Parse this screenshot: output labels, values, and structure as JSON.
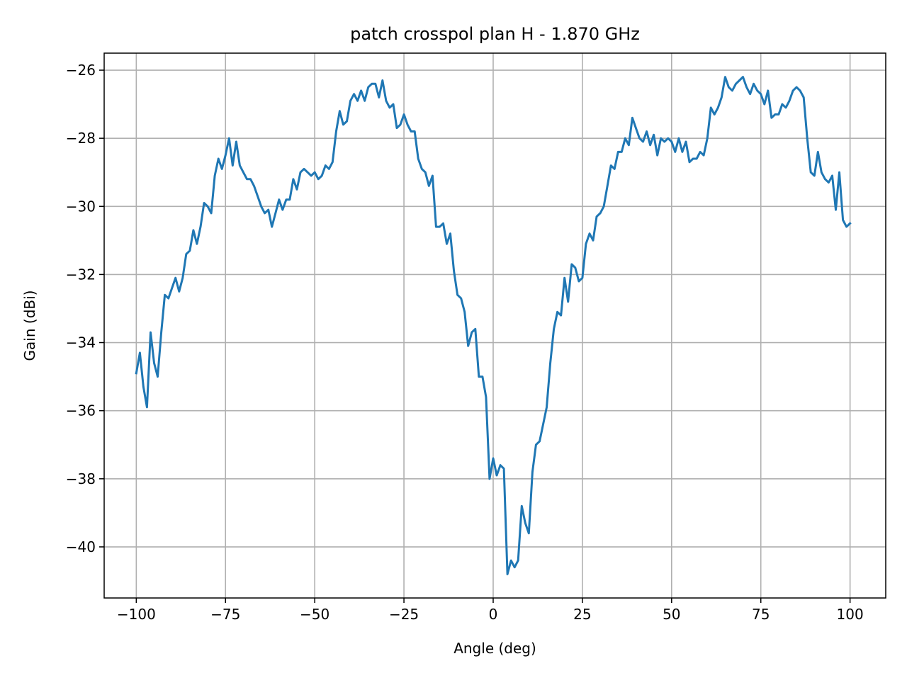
{
  "chart_data": {
    "type": "line",
    "title": "patch crosspol plan H - 1.870 GHz",
    "xlabel": "Angle (deg)",
    "ylabel": "Gain (dBi)",
    "xlim": [
      -109,
      110
    ],
    "ylim": [
      -41.5,
      -25.5
    ],
    "xticks": [
      -100,
      -75,
      -50,
      -25,
      0,
      25,
      50,
      75,
      100
    ],
    "yticks": [
      -40,
      -38,
      -36,
      -34,
      -32,
      -30,
      -28,
      -26
    ],
    "grid": true,
    "legend": "none",
    "series": [
      {
        "color": "#1f77b4",
        "x": [
          -100,
          -99,
          -98,
          -97,
          -96,
          -95,
          -94,
          -93,
          -92,
          -91,
          -90,
          -89,
          -88,
          -87,
          -86,
          -85,
          -84,
          -83,
          -82,
          -81,
          -80,
          -79,
          -78,
          -77,
          -76,
          -75,
          -74,
          -73,
          -72,
          -71,
          -70,
          -69,
          -68,
          -67,
          -66,
          -65,
          -64,
          -63,
          -62,
          -61,
          -60,
          -59,
          -58,
          -57,
          -56,
          -55,
          -54,
          -53,
          -52,
          -51,
          -50,
          -49,
          -48,
          -47,
          -46,
          -45,
          -44,
          -43,
          -42,
          -41,
          -40,
          -39,
          -38,
          -37,
          -36,
          -35,
          -34,
          -33,
          -32,
          -31,
          -30,
          -29,
          -28,
          -27,
          -26,
          -25,
          -24,
          -23,
          -22,
          -21,
          -20,
          -19,
          -18,
          -17,
          -16,
          -15,
          -14,
          -13,
          -12,
          -11,
          -10,
          -9,
          -8,
          -7,
          -6,
          -5,
          -4,
          -3,
          -2,
          -1,
          0,
          1,
          2,
          3,
          4,
          5,
          6,
          7,
          8,
          9,
          10,
          11,
          12,
          13,
          14,
          15,
          16,
          17,
          18,
          19,
          20,
          21,
          22,
          23,
          24,
          25,
          26,
          27,
          28,
          29,
          30,
          31,
          32,
          33,
          34,
          35,
          36,
          37,
          38,
          39,
          40,
          41,
          42,
          43,
          44,
          45,
          46,
          47,
          48,
          49,
          50,
          51,
          52,
          53,
          54,
          55,
          56,
          57,
          58,
          59,
          60,
          61,
          62,
          63,
          64,
          65,
          66,
          67,
          68,
          69,
          70,
          71,
          72,
          73,
          74,
          75,
          76,
          77,
          78,
          79,
          80,
          81,
          82,
          83,
          84,
          85,
          86,
          87,
          88,
          89,
          90,
          91,
          92,
          93,
          94,
          95,
          96,
          97,
          98,
          99,
          100
        ],
        "y": [
          -34.9,
          -34.3,
          -35.3,
          -35.9,
          -33.7,
          -34.6,
          -35.0,
          -33.7,
          -32.6,
          -32.7,
          -32.4,
          -32.1,
          -32.5,
          -32.1,
          -31.4,
          -31.3,
          -30.7,
          -31.1,
          -30.6,
          -29.9,
          -30.0,
          -30.2,
          -29.1,
          -28.6,
          -28.9,
          -28.5,
          -28.0,
          -28.8,
          -28.1,
          -28.8,
          -29.0,
          -29.2,
          -29.2,
          -29.4,
          -29.7,
          -30.0,
          -30.2,
          -30.1,
          -30.6,
          -30.2,
          -29.8,
          -30.1,
          -29.8,
          -29.8,
          -29.2,
          -29.5,
          -29.0,
          -28.9,
          -29.0,
          -29.1,
          -29.0,
          -29.2,
          -29.1,
          -28.8,
          -28.9,
          -28.7,
          -27.8,
          -27.2,
          -27.6,
          -27.5,
          -26.9,
          -26.7,
          -26.9,
          -26.6,
          -26.9,
          -26.5,
          -26.4,
          -26.4,
          -26.8,
          -26.3,
          -26.9,
          -27.1,
          -27.0,
          -27.7,
          -27.6,
          -27.3,
          -27.6,
          -27.8,
          -27.8,
          -28.6,
          -28.9,
          -29.0,
          -29.4,
          -29.1,
          -30.6,
          -30.6,
          -30.5,
          -31.1,
          -30.8,
          -31.9,
          -32.6,
          -32.7,
          -33.1,
          -34.1,
          -33.7,
          -33.6,
          -35.0,
          -35.0,
          -35.6,
          -38.0,
          -37.4,
          -37.9,
          -37.6,
          -37.7,
          -40.8,
          -40.4,
          -40.6,
          -40.4,
          -38.8,
          -39.3,
          -39.6,
          -37.8,
          -37.0,
          -36.9,
          -36.4,
          -35.9,
          -34.6,
          -33.6,
          -33.1,
          -33.2,
          -32.1,
          -32.8,
          -31.7,
          -31.8,
          -32.2,
          -32.1,
          -31.1,
          -30.8,
          -31.0,
          -30.3,
          -30.2,
          -30.0,
          -29.4,
          -28.8,
          -28.9,
          -28.4,
          -28.4,
          -28.0,
          -28.2,
          -27.4,
          -27.7,
          -28.0,
          -28.1,
          -27.8,
          -28.2,
          -27.9,
          -28.5,
          -28.0,
          -28.1,
          -28.0,
          -28.1,
          -28.4,
          -28.0,
          -28.4,
          -28.1,
          -28.7,
          -28.6,
          -28.6,
          -28.4,
          -28.5,
          -28.0,
          -27.1,
          -27.3,
          -27.1,
          -26.8,
          -26.2,
          -26.5,
          -26.6,
          -26.4,
          -26.3,
          -26.2,
          -26.5,
          -26.7,
          -26.4,
          -26.6,
          -26.7,
          -27.0,
          -26.6,
          -27.4,
          -27.3,
          -27.3,
          -27.0,
          -27.1,
          -26.9,
          -26.6,
          -26.5,
          -26.6,
          -26.8,
          -28.0,
          -29.0,
          -29.1,
          -28.4,
          -29.0,
          -29.2,
          -29.3,
          -29.1,
          -30.1,
          -29.0,
          -30.4,
          -30.6,
          -30.5
        ]
      }
    ]
  }
}
